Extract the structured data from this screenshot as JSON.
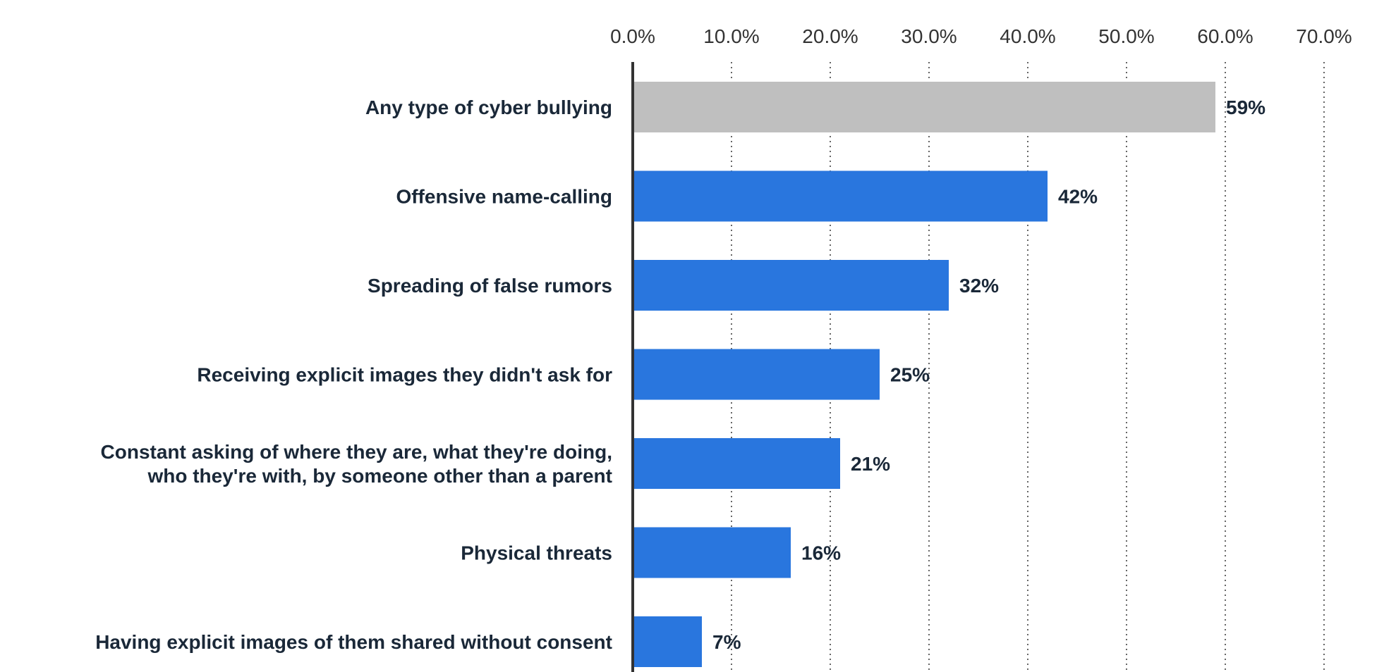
{
  "chart_data": {
    "type": "bar",
    "orientation": "horizontal",
    "title": "",
    "xlabel": "",
    "ylabel": "",
    "xlim": [
      0,
      70
    ],
    "x_ticks": [
      "0.0%",
      "10.0%",
      "20.0%",
      "30.0%",
      "40.0%",
      "50.0%",
      "60.0%",
      "70.0%"
    ],
    "grid": "vertical dotted",
    "legend": "none",
    "categories": [
      [
        "Any type of cyber bullying"
      ],
      [
        "Offensive name-calling"
      ],
      [
        "Spreading of false rumors"
      ],
      [
        "Receiving explicit images they didn't ask for"
      ],
      [
        "Constant asking of where they are, what they're doing,",
        "who they're with, by someone other than a parent"
      ],
      [
        "Physical threats"
      ],
      [
        "Having explicit images of them shared without consent"
      ]
    ],
    "values": [
      59,
      42,
      32,
      25,
      21,
      16,
      7
    ],
    "value_labels": [
      "59%",
      "42%",
      "32%",
      "25%",
      "21%",
      "16%",
      "7%"
    ],
    "bar_colors": [
      "#bfbfbf",
      "#2976de",
      "#2976de",
      "#2976de",
      "#2976de",
      "#2976de",
      "#2976de"
    ],
    "text_color": "#1a2838",
    "axis_color": "#333333"
  }
}
